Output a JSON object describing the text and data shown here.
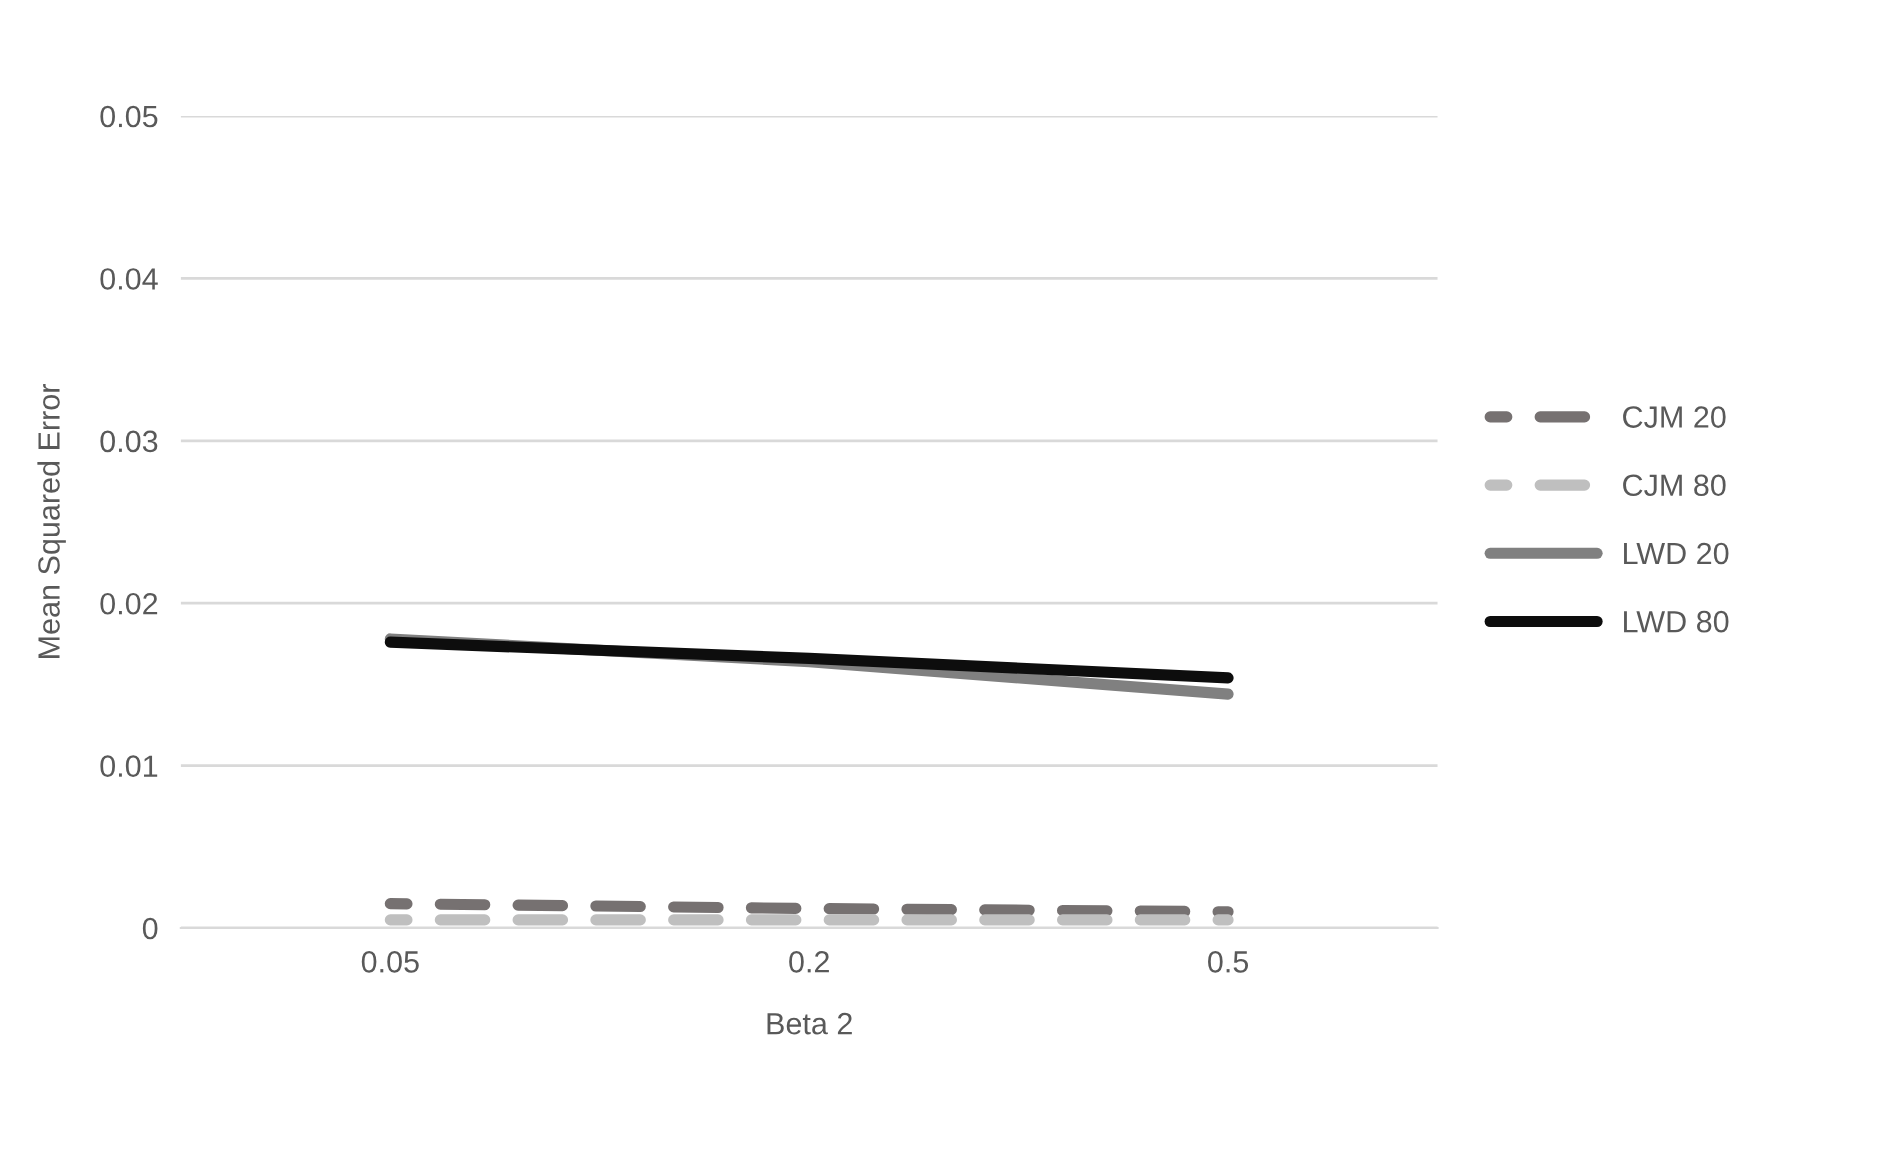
{
  "chart_data": {
    "type": "line",
    "xlabel": "Beta 2",
    "ylabel": "Mean Squared Error",
    "categories": [
      "0.05",
      "0.2",
      "0.5"
    ],
    "series": [
      {
        "name": "CJM 20",
        "color": "#767171",
        "line_style": "dashed",
        "values": [
          0.0015,
          0.0012,
          0.001
        ]
      },
      {
        "name": "CJM 80",
        "color": "#bfbfbf",
        "line_style": "dashed",
        "values": [
          0.0005,
          0.0005,
          0.0005
        ]
      },
      {
        "name": "LWD 20",
        "color": "#808080",
        "line_style": "solid",
        "values": [
          0.0178,
          0.0164,
          0.0144
        ]
      },
      {
        "name": "LWD 80",
        "color": "#0d0d0d",
        "line_style": "solid",
        "values": [
          0.0176,
          0.0166,
          0.0154
        ]
      }
    ],
    "ylim": [
      0,
      0.05
    ],
    "yticks": [
      0,
      0.01,
      0.02,
      0.03,
      0.04,
      0.05
    ],
    "grid": "y",
    "legend": "right"
  }
}
